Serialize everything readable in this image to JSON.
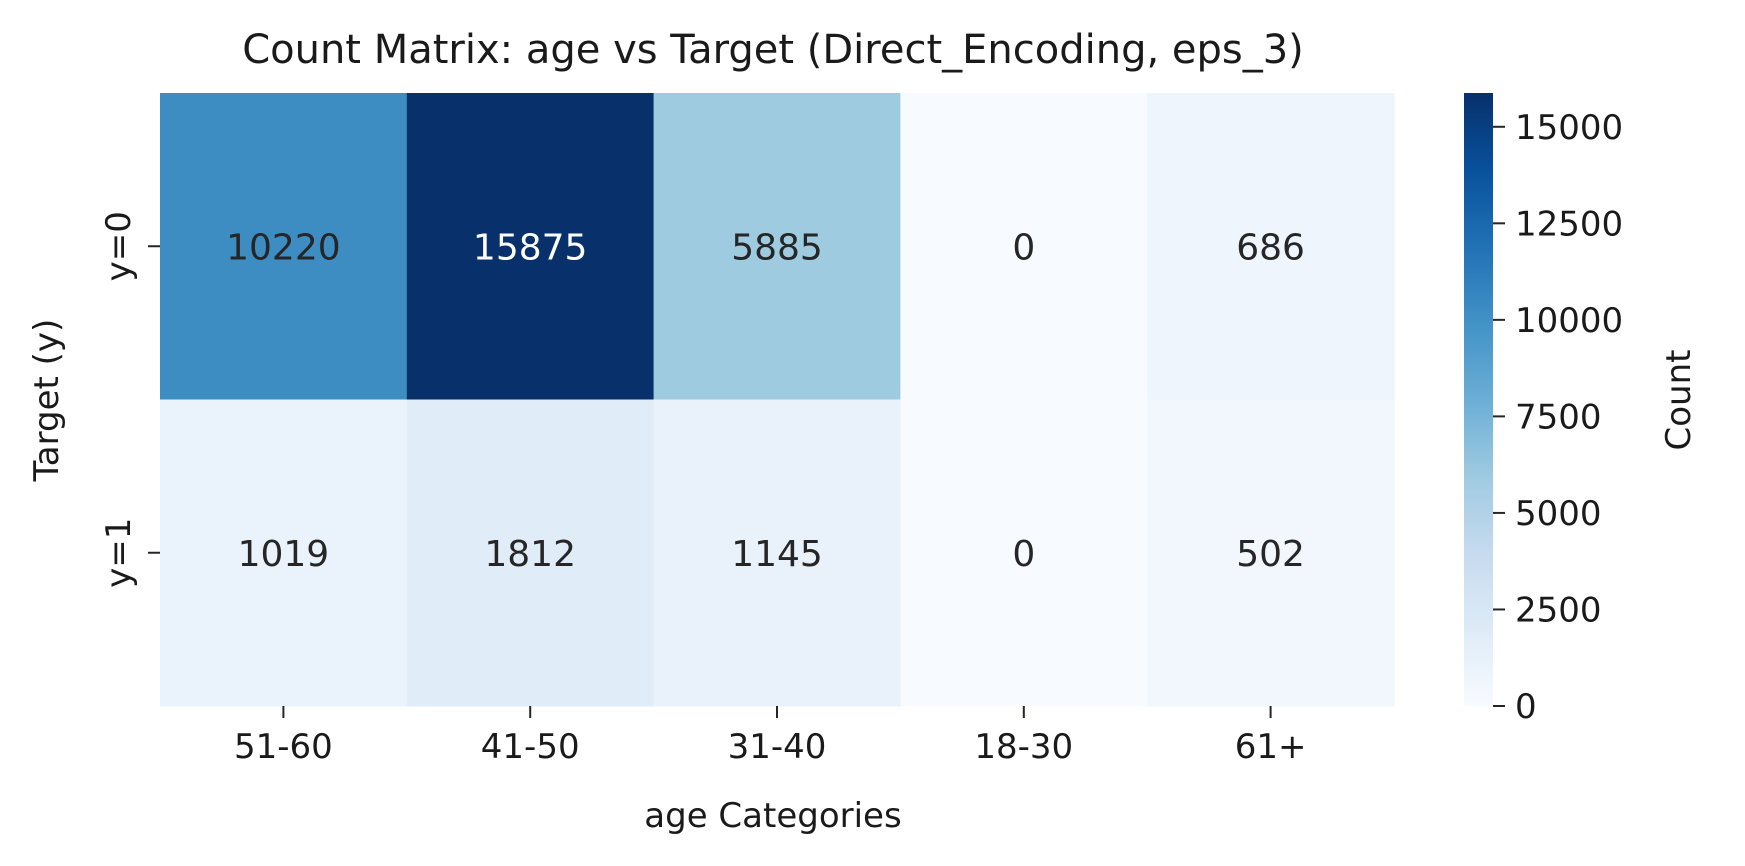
{
  "chart_data": {
    "type": "heatmap",
    "title": "Count Matrix: age vs Target (Direct_Encoding, eps_3)",
    "xlabel": "age Categories",
    "ylabel": "Target (y)",
    "x_categories": [
      "51-60",
      "41-50",
      "31-40",
      "18-30",
      "61+"
    ],
    "y_categories": [
      "y=0",
      "y=1"
    ],
    "values": [
      [
        10220,
        15875,
        5885,
        0,
        686
      ],
      [
        1019,
        1812,
        1145,
        0,
        502
      ]
    ],
    "colorbar": {
      "label": "Count",
      "min": 0,
      "max": 15875,
      "ticks": [
        0,
        2500,
        5000,
        7500,
        10000,
        12500,
        15000
      ],
      "colormap": "Blues"
    }
  }
}
